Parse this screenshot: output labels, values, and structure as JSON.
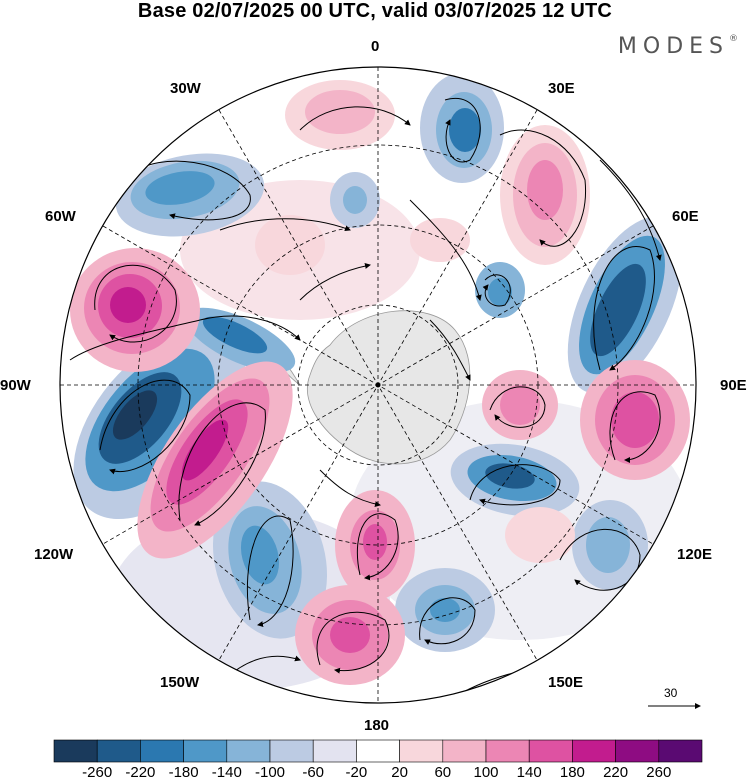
{
  "title": "Base 02/07/2025 00 UTC, valid 03/07/2025 12 UTC",
  "brand": "MODES",
  "brand_mark": "®",
  "longitude_labels": {
    "top": "0",
    "upper_left": "30W",
    "upper_right": "30E",
    "left_upper": "60W",
    "right_upper": "60E",
    "left": "90W",
    "right": "90E",
    "lower_left": "120W",
    "lower_right": "120E",
    "bottom_left": "150W",
    "bottom_right": "150E",
    "bottom": "180"
  },
  "vector_reference": "30",
  "colorbar": {
    "labels": [
      "-260",
      "-220",
      "-180",
      "-140",
      "-100",
      "-60",
      "-20",
      "20",
      "60",
      "100",
      "140",
      "180",
      "220",
      "260"
    ],
    "colors": [
      "#1a3a5c",
      "#1f5a8a",
      "#2b78b0",
      "#4f98c8",
      "#86b4d8",
      "#bccbe3",
      "#e3e3f0",
      "#ffffff",
      "#f8d7dc",
      "#f3b4c8",
      "#ec86b4",
      "#de52a2",
      "#c21c8e",
      "#8e0c82",
      "#5a0a72"
    ]
  }
}
